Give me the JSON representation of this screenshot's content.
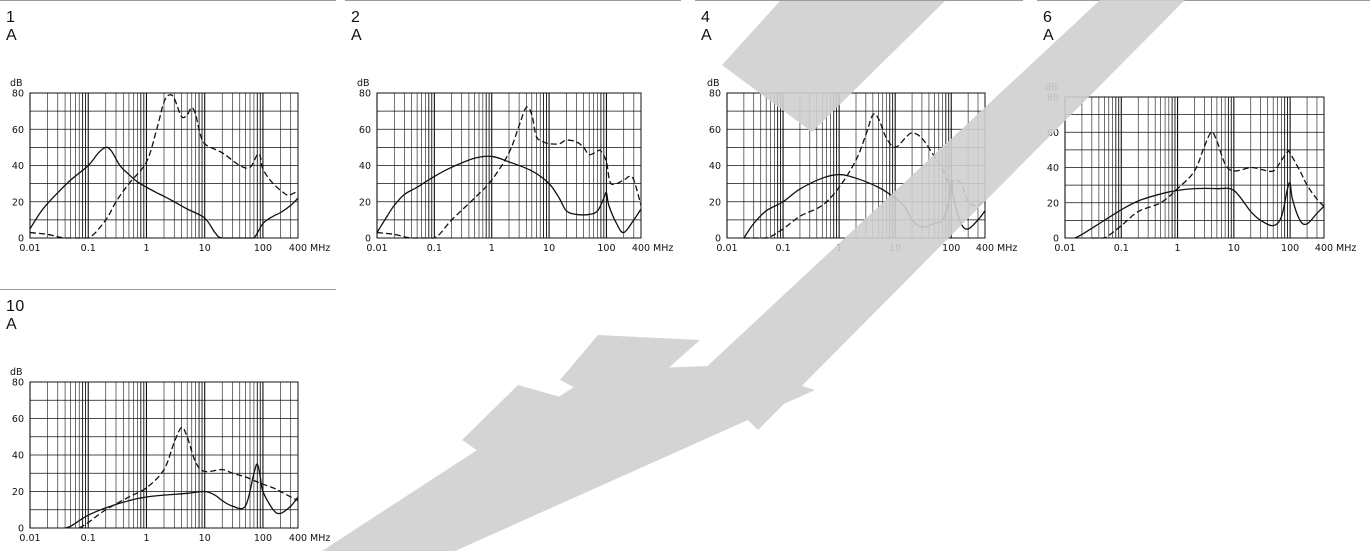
{
  "panels": [
    {
      "title": "1 A"
    },
    {
      "title": "2 A"
    },
    {
      "title": "4 A"
    },
    {
      "title": "6 A"
    },
    {
      "title": "10 A"
    }
  ],
  "chart_data": [
    {
      "type": "line",
      "title": "1 A",
      "xscale": "log",
      "xlim": [
        0.01,
        400
      ],
      "ylim": [
        0,
        80
      ],
      "xticks": [
        0.01,
        0.1,
        1,
        10,
        100,
        400
      ],
      "xtick_labels": [
        "0.01",
        "0.1",
        "1",
        "10",
        "100",
        "400"
      ],
      "yticks": [
        0,
        20,
        40,
        60,
        80
      ],
      "ylabel": "dB",
      "xunit": "MHz",
      "grid": true,
      "series": [
        {
          "style": "solid",
          "points": [
            [
              0.01,
              5
            ],
            [
              0.015,
              14
            ],
            [
              0.02,
              19
            ],
            [
              0.03,
              25
            ],
            [
              0.05,
              32
            ],
            [
              0.1,
              40
            ],
            [
              0.15,
              47
            ],
            [
              0.2,
              50
            ],
            [
              0.25,
              48
            ],
            [
              0.35,
              40
            ],
            [
              0.5,
              35
            ],
            [
              0.7,
              31
            ],
            [
              1,
              28
            ],
            [
              1.5,
              25
            ],
            [
              2,
              23
            ],
            [
              3,
              20
            ],
            [
              5,
              16
            ],
            [
              10,
              11
            ],
            [
              15,
              3
            ],
            [
              20,
              0
            ],
            [
              50,
              0
            ],
            [
              70,
              0
            ],
            [
              100,
              8
            ],
            [
              150,
              12
            ],
            [
              200,
              14
            ],
            [
              300,
              18
            ],
            [
              400,
              22
            ]
          ]
        },
        {
          "style": "dashed",
          "points": [
            [
              0.01,
              3
            ],
            [
              0.02,
              2
            ],
            [
              0.04,
              0
            ],
            [
              0.1,
              0
            ],
            [
              0.2,
              10
            ],
            [
              0.3,
              20
            ],
            [
              0.5,
              30
            ],
            [
              1,
              42
            ],
            [
              1.5,
              60
            ],
            [
              2,
              75
            ],
            [
              2.5,
              79
            ],
            [
              3,
              77
            ],
            [
              4,
              67
            ],
            [
              5,
              68
            ],
            [
              6,
              72
            ],
            [
              7,
              68
            ],
            [
              8,
              60
            ],
            [
              10,
              52
            ],
            [
              20,
              47
            ],
            [
              40,
              40
            ],
            [
              60,
              39
            ],
            [
              80,
              46
            ],
            [
              90,
              45
            ],
            [
              100,
              38
            ],
            [
              150,
              30
            ],
            [
              250,
              24
            ],
            [
              300,
              24
            ],
            [
              400,
              26
            ]
          ]
        }
      ]
    },
    {
      "type": "line",
      "title": "2 A",
      "xscale": "log",
      "xlim": [
        0.01,
        400
      ],
      "ylim": [
        0,
        80
      ],
      "xticks": [
        0.01,
        0.1,
        1,
        10,
        100,
        400
      ],
      "xtick_labels": [
        "0.01",
        "0.1",
        "1",
        "10",
        "100",
        "400"
      ],
      "yticks": [
        0,
        20,
        40,
        60,
        80
      ],
      "ylabel": "dB",
      "xunit": "MHz",
      "grid": true,
      "series": [
        {
          "style": "solid",
          "points": [
            [
              0.01,
              3
            ],
            [
              0.015,
              12
            ],
            [
              0.02,
              18
            ],
            [
              0.03,
              24
            ],
            [
              0.05,
              28
            ],
            [
              0.1,
              34
            ],
            [
              0.2,
              39
            ],
            [
              0.5,
              44
            ],
            [
              1,
              45
            ],
            [
              2,
              42
            ],
            [
              5,
              37
            ],
            [
              10,
              30
            ],
            [
              15,
              22
            ],
            [
              20,
              15
            ],
            [
              30,
              13
            ],
            [
              50,
              13
            ],
            [
              70,
              15
            ],
            [
              90,
              22
            ],
            [
              100,
              25
            ],
            [
              110,
              18
            ],
            [
              150,
              8
            ],
            [
              200,
              3
            ],
            [
              300,
              10
            ],
            [
              400,
              16
            ]
          ]
        },
        {
          "style": "dashed",
          "points": [
            [
              0.01,
              3
            ],
            [
              0.02,
              2
            ],
            [
              0.04,
              0
            ],
            [
              0.1,
              0
            ],
            [
              0.2,
              10
            ],
            [
              0.5,
              22
            ],
            [
              1,
              32
            ],
            [
              2,
              47
            ],
            [
              3,
              62
            ],
            [
              4,
              72
            ],
            [
              5,
              68
            ],
            [
              6,
              56
            ],
            [
              8,
              53
            ],
            [
              10,
              52
            ],
            [
              15,
              52
            ],
            [
              20,
              54
            ],
            [
              30,
              53
            ],
            [
              40,
              50
            ],
            [
              50,
              46
            ],
            [
              70,
              48
            ],
            [
              80,
              48
            ],
            [
              100,
              42
            ],
            [
              120,
              30
            ],
            [
              200,
              32
            ],
            [
              250,
              34
            ],
            [
              300,
              32
            ],
            [
              400,
              18
            ]
          ]
        }
      ]
    },
    {
      "type": "line",
      "title": "4 A",
      "xscale": "log",
      "xlim": [
        0.01,
        400
      ],
      "ylim": [
        0,
        80
      ],
      "xticks": [
        0.01,
        0.1,
        1,
        10,
        100,
        400
      ],
      "xtick_labels": [
        "0.01",
        "0.1",
        "1",
        "10",
        "100",
        "400"
      ],
      "yticks": [
        0,
        20,
        40,
        60,
        80
      ],
      "ylabel": "dB",
      "xunit": "MHz",
      "grid": true,
      "series": [
        {
          "style": "solid",
          "points": [
            [
              0.02,
              0
            ],
            [
              0.03,
              8
            ],
            [
              0.05,
              15
            ],
            [
              0.1,
              20
            ],
            [
              0.2,
              27
            ],
            [
              0.5,
              33
            ],
            [
              1,
              35
            ],
            [
              2,
              33
            ],
            [
              5,
              28
            ],
            [
              10,
              22
            ],
            [
              15,
              17
            ],
            [
              20,
              10
            ],
            [
              30,
              6
            ],
            [
              50,
              8
            ],
            [
              70,
              10
            ],
            [
              90,
              20
            ],
            [
              100,
              32
            ],
            [
              110,
              22
            ],
            [
              150,
              8
            ],
            [
              200,
              5
            ],
            [
              300,
              10
            ],
            [
              400,
              15
            ]
          ]
        },
        {
          "style": "dashed",
          "points": [
            [
              0.02,
              0
            ],
            [
              0.05,
              0
            ],
            [
              0.1,
              5
            ],
            [
              0.2,
              12
            ],
            [
              0.5,
              18
            ],
            [
              1,
              28
            ],
            [
              2,
              43
            ],
            [
              3,
              57
            ],
            [
              4,
              68
            ],
            [
              5,
              66
            ],
            [
              7,
              55
            ],
            [
              10,
              50
            ],
            [
              15,
              55
            ],
            [
              20,
              58
            ],
            [
              30,
              55
            ],
            [
              50,
              45
            ],
            [
              70,
              38
            ],
            [
              90,
              30
            ],
            [
              100,
              27
            ],
            [
              110,
              32
            ],
            [
              150,
              30
            ],
            [
              200,
              20
            ],
            [
              300,
              18
            ],
            [
              400,
              22
            ]
          ]
        }
      ]
    },
    {
      "type": "line",
      "title": "6 A",
      "xscale": "log",
      "xlim": [
        0.01,
        400
      ],
      "ylim": [
        0,
        80
      ],
      "xticks": [
        0.01,
        0.1,
        1,
        10,
        100,
        400
      ],
      "xtick_labels": [
        "0.01",
        "0.1",
        "1",
        "10",
        "100",
        "400"
      ],
      "yticks": [
        0,
        20,
        40,
        60,
        80
      ],
      "ylabel": "dB",
      "xunit": "MHz",
      "grid": true,
      "series": [
        {
          "style": "solid",
          "points": [
            [
              0.015,
              0
            ],
            [
              0.02,
              2
            ],
            [
              0.05,
              10
            ],
            [
              0.1,
              16
            ],
            [
              0.2,
              21
            ],
            [
              0.5,
              25
            ],
            [
              1,
              27
            ],
            [
              2,
              28
            ],
            [
              5,
              28
            ],
            [
              10,
              27
            ],
            [
              20,
              15
            ],
            [
              30,
              10
            ],
            [
              50,
              7
            ],
            [
              70,
              12
            ],
            [
              90,
              28
            ],
            [
              100,
              31
            ],
            [
              110,
              22
            ],
            [
              150,
              10
            ],
            [
              200,
              8
            ],
            [
              300,
              14
            ],
            [
              400,
              18
            ]
          ]
        },
        {
          "style": "dashed",
          "points": [
            [
              0.03,
              0
            ],
            [
              0.05,
              0
            ],
            [
              0.1,
              7
            ],
            [
              0.2,
              15
            ],
            [
              0.5,
              20
            ],
            [
              1,
              28
            ],
            [
              2,
              38
            ],
            [
              3,
              52
            ],
            [
              4,
              60
            ],
            [
              5,
              55
            ],
            [
              7,
              42
            ],
            [
              10,
              38
            ],
            [
              20,
              40
            ],
            [
              30,
              39
            ],
            [
              50,
              38
            ],
            [
              70,
              44
            ],
            [
              90,
              49
            ],
            [
              100,
              48
            ],
            [
              150,
              38
            ],
            [
              200,
              30
            ],
            [
              300,
              22
            ],
            [
              400,
              18
            ]
          ]
        }
      ]
    },
    {
      "type": "line",
      "title": "10 A",
      "xscale": "log",
      "xlim": [
        0.01,
        400
      ],
      "ylim": [
        0,
        80
      ],
      "xticks": [
        0.01,
        0.1,
        1,
        10,
        100,
        400
      ],
      "xtick_labels": [
        "0.01",
        "0.1",
        "1",
        "10",
        "100",
        "400"
      ],
      "yticks": [
        0,
        20,
        40,
        60,
        80
      ],
      "ylabel": "dB",
      "xunit": "MHz",
      "grid": true,
      "series": [
        {
          "style": "solid",
          "points": [
            [
              0.04,
              0
            ],
            [
              0.05,
              1
            ],
            [
              0.1,
              7
            ],
            [
              0.2,
              11
            ],
            [
              0.5,
              15
            ],
            [
              1,
              17
            ],
            [
              2,
              18
            ],
            [
              5,
              19
            ],
            [
              10,
              20
            ],
            [
              15,
              18
            ],
            [
              20,
              15
            ],
            [
              30,
              12
            ],
            [
              50,
              12
            ],
            [
              70,
              30
            ],
            [
              80,
              35
            ],
            [
              90,
              28
            ],
            [
              100,
              20
            ],
            [
              150,
              10
            ],
            [
              200,
              8
            ],
            [
              300,
              12
            ],
            [
              400,
              17
            ]
          ]
        },
        {
          "style": "dashed",
          "points": [
            [
              0.07,
              0
            ],
            [
              0.1,
              3
            ],
            [
              0.2,
              10
            ],
            [
              0.5,
              17
            ],
            [
              1,
              22
            ],
            [
              2,
              32
            ],
            [
              3,
              47
            ],
            [
              4,
              55
            ],
            [
              5,
              50
            ],
            [
              7,
              36
            ],
            [
              10,
              31
            ],
            [
              20,
              32
            ],
            [
              30,
              30
            ],
            [
              50,
              28
            ],
            [
              70,
              26
            ],
            [
              100,
              24
            ],
            [
              150,
              22
            ],
            [
              200,
              20
            ],
            [
              300,
              17
            ],
            [
              400,
              15
            ]
          ]
        }
      ]
    }
  ]
}
